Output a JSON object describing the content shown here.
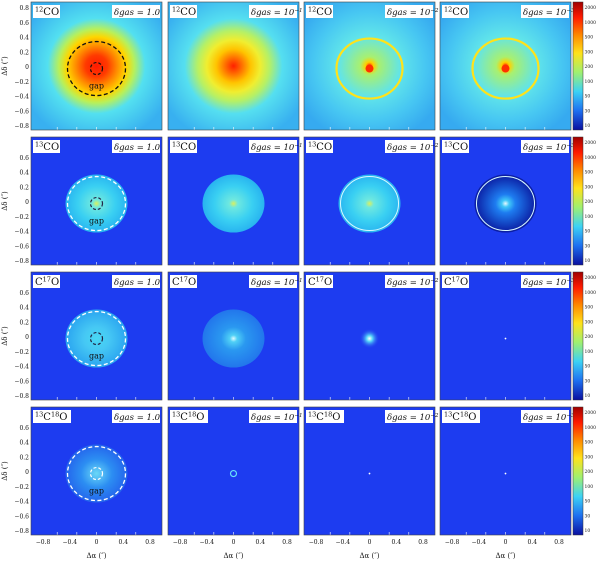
{
  "figure": {
    "rows": [
      {
        "species": "12CO",
        "colorbar_ticks": [
          "2000",
          "1000",
          "500",
          "300",
          "200",
          "100",
          "50",
          "30",
          "10"
        ],
        "gap_label": "gap",
        "panels": [
          {
            "species_label_parts": [
              "12",
              "CO"
            ],
            "delta_label": "δgas = 1.0",
            "delta_exp": "",
            "style": "hot-full",
            "gap_ring": "dark"
          },
          {
            "species_label_parts": [
              "12",
              "CO"
            ],
            "delta_label": "δgas = 10",
            "delta_exp": "−1",
            "style": "hot-medium",
            "gap_ring": ""
          },
          {
            "species_label_parts": [
              "12",
              "CO"
            ],
            "delta_label": "δgas = 10",
            "delta_exp": "−2",
            "style": "ring-hot",
            "gap_ring": ""
          },
          {
            "species_label_parts": [
              "12",
              "CO"
            ],
            "delta_label": "δgas = 10",
            "delta_exp": "−3",
            "style": "ring-hot",
            "gap_ring": ""
          }
        ]
      },
      {
        "species": "13CO",
        "colorbar_ticks": [
          "2000",
          "1000",
          "500",
          "300",
          "200",
          "100",
          "50",
          "30",
          "10"
        ],
        "gap_label": "gap",
        "panels": [
          {
            "species_label_parts": [
              "13",
              "CO"
            ],
            "delta_label": "δgas = 1.0",
            "delta_exp": "",
            "style": "disk-cyan",
            "gap_ring": "white"
          },
          {
            "species_label_parts": [
              "13",
              "CO"
            ],
            "delta_label": "δgas = 10",
            "delta_exp": "−1",
            "style": "disk-cyan",
            "gap_ring": ""
          },
          {
            "species_label_parts": [
              "13",
              "CO"
            ],
            "delta_label": "δgas = 10",
            "delta_exp": "−2",
            "style": "disk-cyan-ring",
            "gap_ring": ""
          },
          {
            "species_label_parts": [
              "13",
              "CO"
            ],
            "delta_label": "δgas = 10",
            "delta_exp": "−3",
            "style": "disk-dark",
            "gap_ring": ""
          }
        ]
      },
      {
        "species": "C17O",
        "colorbar_ticks": [
          "2000",
          "1000",
          "500",
          "300",
          "200",
          "100",
          "50",
          "30",
          "10"
        ],
        "gap_label": "gap",
        "panels": [
          {
            "species_label_parts": [
              "C",
              "17",
              "O"
            ],
            "delta_label": "δgas = 1.0",
            "delta_exp": "",
            "style": "disk-light",
            "gap_ring": "white"
          },
          {
            "species_label_parts": [
              "C",
              "17",
              "O"
            ],
            "delta_label": "δgas = 10",
            "delta_exp": "−1",
            "style": "disk-mid",
            "gap_ring": ""
          },
          {
            "species_label_parts": [
              "C",
              "17",
              "O"
            ],
            "delta_label": "δgas = 10",
            "delta_exp": "−2",
            "style": "spot",
            "gap_ring": ""
          },
          {
            "species_label_parts": [
              "C",
              "17",
              "O"
            ],
            "delta_label": "δgas = 10",
            "delta_exp": "−3",
            "style": "dot",
            "gap_ring": ""
          }
        ]
      },
      {
        "species": "13C18O",
        "colorbar_ticks": [
          "2000",
          "1000",
          "500",
          "300",
          "200",
          "100",
          "50",
          "30",
          "10"
        ],
        "gap_label": "gap",
        "panels": [
          {
            "species_label_parts": [
              "13",
              "C",
              "18",
              "O"
            ],
            "delta_label": "δgas = 1.0",
            "delta_exp": "",
            "style": "disk-faint",
            "gap_ring": "white"
          },
          {
            "species_label_parts": [
              "13",
              "C",
              "18",
              "O"
            ],
            "delta_label": "δgas = 10",
            "delta_exp": "−1",
            "style": "small-ring",
            "gap_ring": ""
          },
          {
            "species_label_parts": [
              "13",
              "C",
              "18",
              "O"
            ],
            "delta_label": "δgas = 10",
            "delta_exp": "−2",
            "style": "dot",
            "gap_ring": ""
          },
          {
            "species_label_parts": [
              "13",
              "C",
              "18",
              "O"
            ],
            "delta_label": "δgas = 10",
            "delta_exp": "−3",
            "style": "dot",
            "gap_ring": ""
          }
        ]
      }
    ],
    "y_axis_label": "Δδ (″)",
    "x_axis_label": "Δα (″)",
    "y_ticks": [
      "0.8",
      "0.6",
      "0.4",
      "0.2",
      "0",
      "−0.2",
      "−0.4",
      "−0.6",
      "−0.8"
    ],
    "x_ticks": [
      "−0.8",
      "−0.4",
      "0",
      "0.4",
      "0.8"
    ],
    "colors": {
      "background_blue": "#1d3cf0",
      "cyan": "#3cd2f5",
      "hot_red": "#ff2a0a",
      "yellow": "#ffe21a"
    }
  }
}
